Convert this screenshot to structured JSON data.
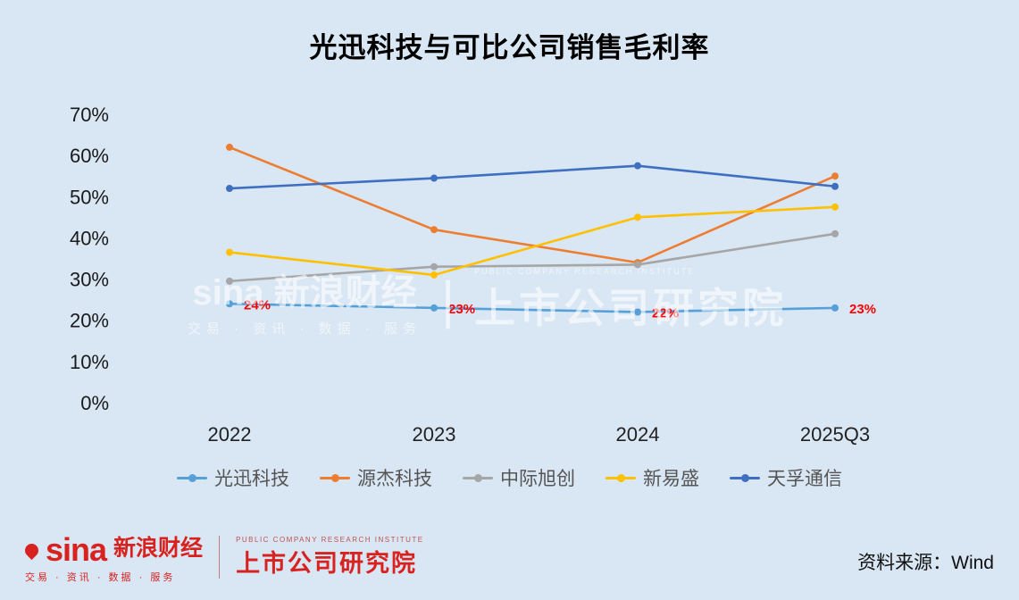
{
  "title": "光迅科技与可比公司销售毛利率",
  "chart_data": {
    "type": "line",
    "categories": [
      "2022",
      "2023",
      "2024",
      "2025Q3"
    ],
    "ylim": [
      0,
      70
    ],
    "ytick_step": 10,
    "yticks": [
      "0%",
      "10%",
      "20%",
      "30%",
      "40%",
      "50%",
      "60%",
      "70%"
    ],
    "grid": false,
    "legend_position": "bottom",
    "series": [
      {
        "name": "光迅科技",
        "color": "#56a0d8",
        "values": [
          24,
          23,
          22,
          23
        ],
        "point_labels": [
          "24%",
          "23%",
          "22%",
          "23%"
        ],
        "point_label_color": "#ff0000"
      },
      {
        "name": "源杰科技",
        "color": "#ed7d31",
        "values": [
          62,
          42,
          34,
          55
        ]
      },
      {
        "name": "中际旭创",
        "color": "#a6a6a6",
        "values": [
          29.5,
          33,
          33.5,
          41
        ]
      },
      {
        "name": "新易盛",
        "color": "#ffc000",
        "values": [
          36.5,
          31,
          45,
          47.5
        ]
      },
      {
        "name": "天孚通信",
        "color": "#3f6fc1",
        "values": [
          52,
          54.5,
          57.5,
          52.5
        ]
      }
    ]
  },
  "watermark": {
    "brand": "sina 新浪财经",
    "slogan": "交易 · 资讯 · 数据 · 服务",
    "divider": "|",
    "institute_en": "PUBLIC COMPANY RESEARCH INSTITUTE",
    "institute": "上市公司研究院"
  },
  "footer": {
    "sina_logo": "sina",
    "brand": "新浪财经",
    "slogan": "交易 · 资讯 · 数据 · 服务",
    "institute_en": "PUBLIC COMPANY RESEARCH INSTITUTE",
    "institute": "上市公司研究院",
    "source": "资料来源：Wind"
  }
}
